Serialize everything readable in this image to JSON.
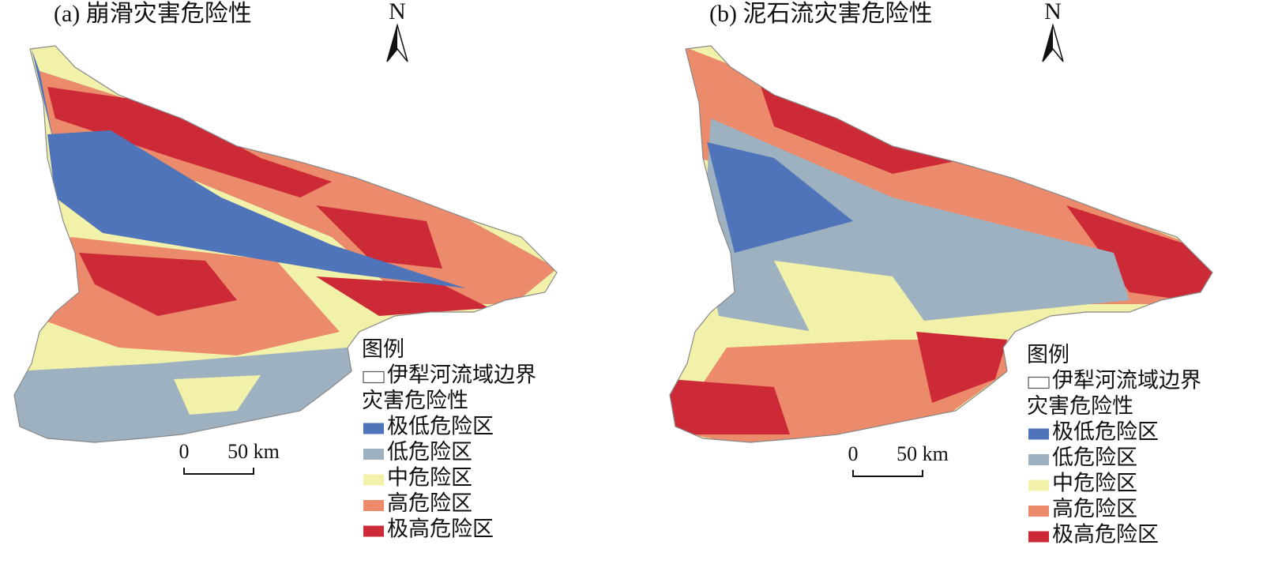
{
  "panels": [
    {
      "title": "(a) 崩滑灾害危险性",
      "north": "N",
      "scale": {
        "start": "0",
        "end": "50 km"
      },
      "legend": {
        "title": "图例",
        "boundary": "伊犁河流域边界",
        "hazard_title": "灾害危险性",
        "classes": [
          {
            "label": "极低危险区",
            "color": "#4f74b9"
          },
          {
            "label": "低危险区",
            "color": "#9db1c1"
          },
          {
            "label": "中危险区",
            "color": "#f2f1a9"
          },
          {
            "label": "高危险区",
            "color": "#ec8b6b"
          },
          {
            "label": "极高危险区",
            "color": "#cd2a37"
          }
        ]
      }
    },
    {
      "title": "(b) 泥石流灾害危险性",
      "north": "N",
      "scale": {
        "start": "0",
        "end": "50 km"
      },
      "legend": {
        "title": "图例",
        "boundary": "伊犁河流域边界",
        "hazard_title": "灾害危险性",
        "classes": [
          {
            "label": "极低危险区",
            "color": "#4f74b9"
          },
          {
            "label": "低危险区",
            "color": "#9db1c1"
          },
          {
            "label": "中危险区",
            "color": "#f2f1a9"
          },
          {
            "label": "高危险区",
            "color": "#ec8b6b"
          },
          {
            "label": "极高危险区",
            "color": "#cd2a37"
          }
        ]
      }
    }
  ]
}
